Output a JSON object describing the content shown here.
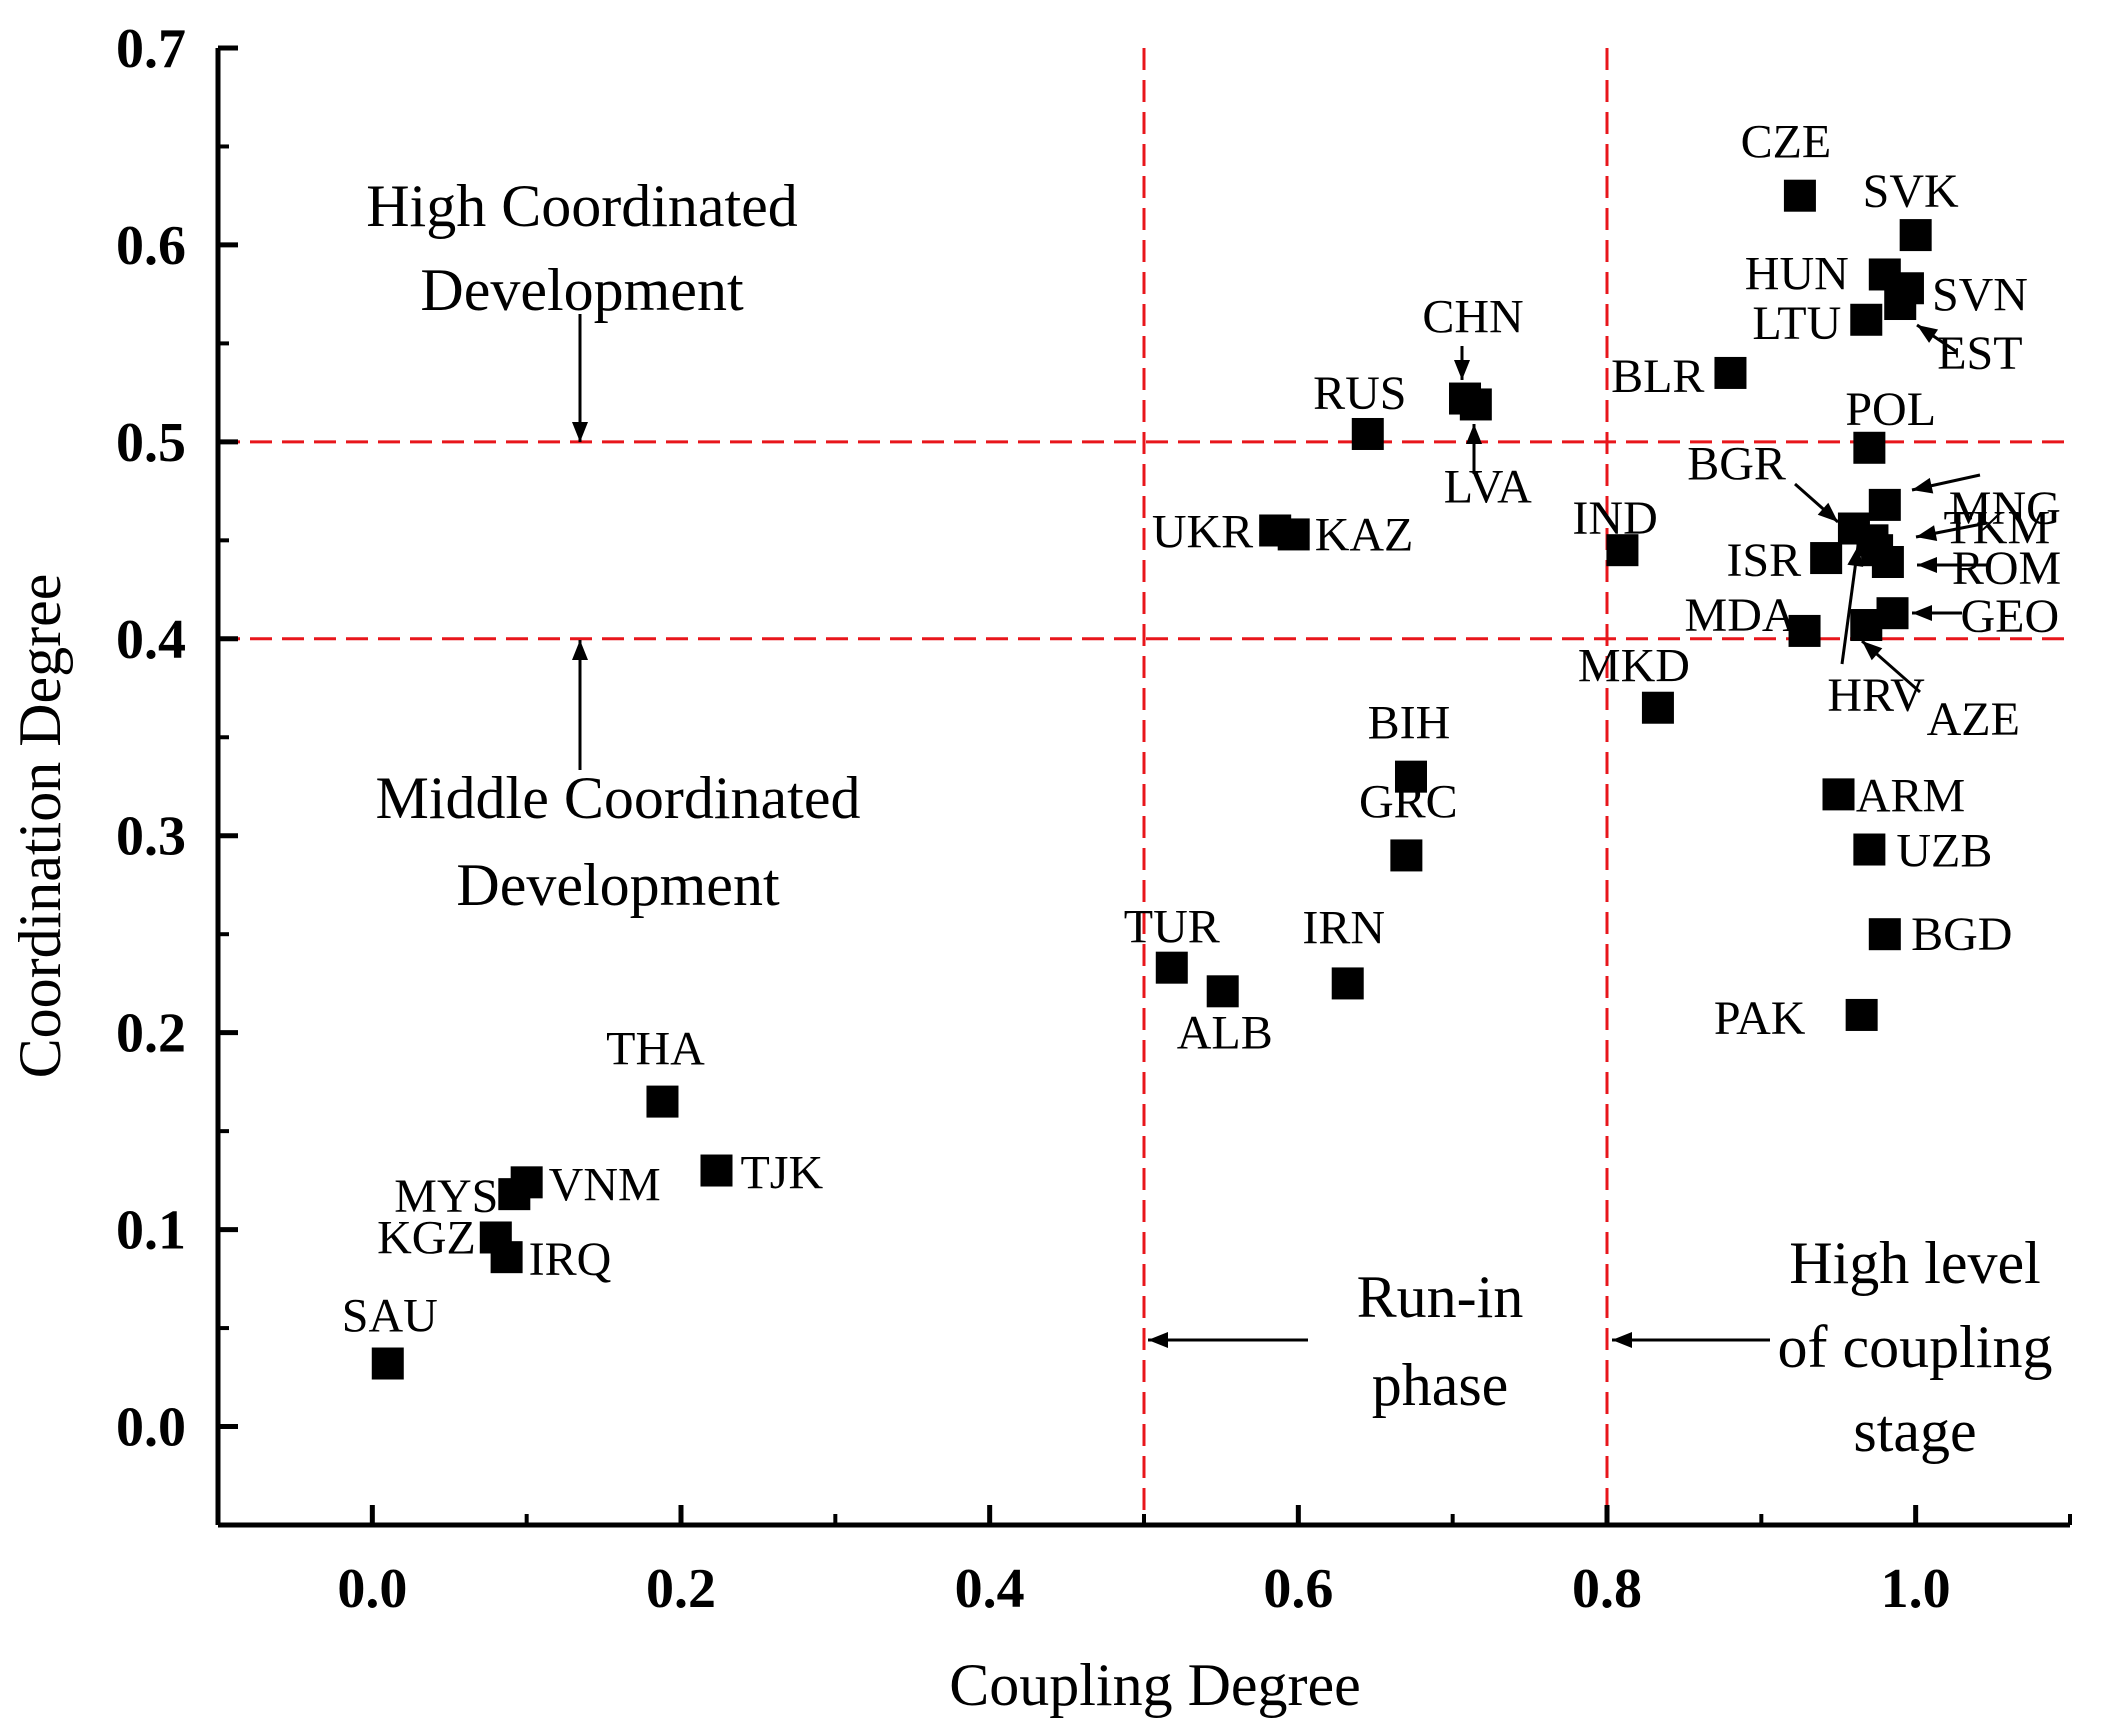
{
  "chart_data": {
    "type": "scatter",
    "xlabel": "Coupling Degree",
    "ylabel": "Coordination Degree",
    "xlim": [
      -0.1,
      1.1
    ],
    "ylim": [
      -0.05,
      0.7
    ],
    "x_ticks": [
      0.0,
      0.2,
      0.4,
      0.6,
      0.8,
      1.0
    ],
    "x_tick_labels": [
      "0.0",
      "0.2",
      "0.4",
      "0.6",
      "0.8",
      "1.0"
    ],
    "y_ticks": [
      0.0,
      0.1,
      0.2,
      0.3,
      0.4,
      0.5,
      0.6,
      0.7
    ],
    "y_tick_labels": [
      "0.0",
      "0.1",
      "0.2",
      "0.3",
      "0.4",
      "0.5",
      "0.6",
      "0.7"
    ],
    "marker": "square",
    "marker_color": "#000000",
    "reference_line_color": "#e8161b",
    "grid": false,
    "vertical_lines": [
      0.5,
      0.8
    ],
    "horizontal_lines": [
      0.4,
      0.5
    ],
    "points": [
      {
        "label": "CZE",
        "x": 0.925,
        "y": 0.625
      },
      {
        "label": "SVK",
        "x": 1.0,
        "y": 0.605
      },
      {
        "label": "HUN",
        "x": 0.98,
        "y": 0.585
      },
      {
        "label": "SVN",
        "x": 0.995,
        "y": 0.578
      },
      {
        "label": "EST",
        "x": 0.99,
        "y": 0.57
      },
      {
        "label": "LTU",
        "x": 0.968,
        "y": 0.562
      },
      {
        "label": "BLR",
        "x": 0.88,
        "y": 0.535
      },
      {
        "label": "CHN",
        "x": 0.708,
        "y": 0.522
      },
      {
        "label": "LVA",
        "x": 0.715,
        "y": 0.519
      },
      {
        "label": "RUS",
        "x": 0.645,
        "y": 0.504
      },
      {
        "label": "POL",
        "x": 0.97,
        "y": 0.497
      },
      {
        "label": "MNG",
        "x": 0.98,
        "y": 0.468
      },
      {
        "label": "BGR",
        "x": 0.96,
        "y": 0.456
      },
      {
        "label": "TKM",
        "x": 0.972,
        "y": 0.45
      },
      {
        "label": "UKR",
        "x": 0.585,
        "y": 0.455
      },
      {
        "label": "KAZ",
        "x": 0.597,
        "y": 0.453
      },
      {
        "label": "IND",
        "x": 0.81,
        "y": 0.445
      },
      {
        "label": "ISR",
        "x": 0.942,
        "y": 0.441
      },
      {
        "label": "ROM",
        "x": 0.982,
        "y": 0.439
      },
      {
        "label": "GEO",
        "x": 0.985,
        "y": 0.413
      },
      {
        "label": "AZE",
        "x": 0.968,
        "y": 0.407
      },
      {
        "label": "MDA",
        "x": 0.928,
        "y": 0.404
      },
      {
        "label": "HRV",
        "x": 0.975,
        "y": 0.445
      },
      {
        "label": "MKD",
        "x": 0.833,
        "y": 0.365
      },
      {
        "label": "BIH",
        "x": 0.673,
        "y": 0.33
      },
      {
        "label": "ARM",
        "x": 0.95,
        "y": 0.321
      },
      {
        "label": "UZB",
        "x": 0.97,
        "y": 0.293
      },
      {
        "label": "GRC",
        "x": 0.67,
        "y": 0.29
      },
      {
        "label": "BGD",
        "x": 0.98,
        "y": 0.25
      },
      {
        "label": "TUR",
        "x": 0.518,
        "y": 0.233
      },
      {
        "label": "IRN",
        "x": 0.632,
        "y": 0.225
      },
      {
        "label": "ALB",
        "x": 0.551,
        "y": 0.221
      },
      {
        "label": "PAK",
        "x": 0.965,
        "y": 0.209
      },
      {
        "label": "THA",
        "x": 0.188,
        "y": 0.165
      },
      {
        "label": "TJK",
        "x": 0.223,
        "y": 0.13
      },
      {
        "label": "VNM",
        "x": 0.1,
        "y": 0.124
      },
      {
        "label": "MYS",
        "x": 0.092,
        "y": 0.118
      },
      {
        "label": "KGZ",
        "x": 0.08,
        "y": 0.096
      },
      {
        "label": "IRQ",
        "x": 0.087,
        "y": 0.086
      },
      {
        "label": "SAU",
        "x": 0.01,
        "y": 0.032
      }
    ],
    "annotations": [
      "High Coordinated",
      "Development",
      "Middle Coordinated",
      "Development",
      "Run-in",
      "phase",
      "High level",
      "of coupling",
      "stage"
    ]
  }
}
